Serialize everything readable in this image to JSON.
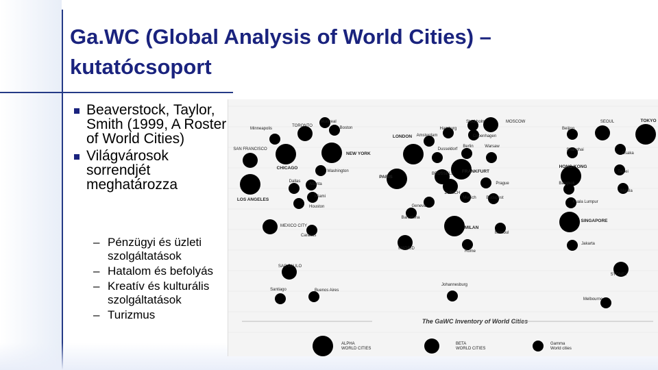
{
  "slide": {
    "title_line1": "Ga.WC (Global Analysis of World Cities) –",
    "title_line2": "kutatócsoport",
    "bullets": [
      "Beaverstock, Taylor, Smith (1999, A Roster of World Cities)",
      "Világvárosok sorrendjét meghatározza"
    ],
    "sub_bullets": [
      "Pénzügyi és üzleti szolgáltatások",
      "Hatalom és befolyás",
      "Kreatív és kulturális szolgáltatások",
      "Turizmus"
    ]
  },
  "map": {
    "caption": "The GaWC Inventory of World Cities",
    "legend": [
      {
        "label": "ALPHA WORLD CITIES",
        "tier": "alpha"
      },
      {
        "label": "BETA WORLD CITIES",
        "tier": "beta"
      },
      {
        "label": "Gamma World cities",
        "tier": "gamma"
      }
    ],
    "cities": [
      {
        "name": "Montreal",
        "tier": "gamma"
      },
      {
        "name": "Boston",
        "tier": "gamma"
      },
      {
        "name": "TORONTO",
        "tier": "beta"
      },
      {
        "name": "Minneapolis",
        "tier": "gamma"
      },
      {
        "name": "SAN FRANCISCO",
        "tier": "beta"
      },
      {
        "name": "NEW YORK",
        "tier": "alpha"
      },
      {
        "name": "CHICAGO",
        "tier": "alpha"
      },
      {
        "name": "Washington",
        "tier": "gamma"
      },
      {
        "name": "Dallas",
        "tier": "gamma"
      },
      {
        "name": "Atlanta",
        "tier": "gamma"
      },
      {
        "name": "LOS ANGELES",
        "tier": "alpha"
      },
      {
        "name": "Miami",
        "tier": "gamma"
      },
      {
        "name": "Houston",
        "tier": "gamma"
      },
      {
        "name": "MEXICO CITY",
        "tier": "beta"
      },
      {
        "name": "Caracas",
        "tier": "gamma"
      },
      {
        "name": "SAO PAULO",
        "tier": "beta"
      },
      {
        "name": "Santiago",
        "tier": "gamma"
      },
      {
        "name": "Buenos Aires",
        "tier": "gamma"
      },
      {
        "name": "Stockholm",
        "tier": "gamma"
      },
      {
        "name": "MOSCOW",
        "tier": "beta"
      },
      {
        "name": "Hamburg",
        "tier": "gamma"
      },
      {
        "name": "Copenhagen",
        "tier": "gamma"
      },
      {
        "name": "LONDON",
        "tier": "alpha"
      },
      {
        "name": "Amsterdam",
        "tier": "gamma"
      },
      {
        "name": "Dusseldorf",
        "tier": "gamma"
      },
      {
        "name": "Berlin",
        "tier": "gamma"
      },
      {
        "name": "Warsaw",
        "tier": "gamma"
      },
      {
        "name": "FRANKFURT",
        "tier": "alpha"
      },
      {
        "name": "PARIS",
        "tier": "alpha"
      },
      {
        "name": "BRUSSELS",
        "tier": "beta"
      },
      {
        "name": "Prague",
        "tier": "gamma"
      },
      {
        "name": "ZURICH",
        "tier": "beta"
      },
      {
        "name": "Munich",
        "tier": "gamma"
      },
      {
        "name": "Budapest",
        "tier": "gamma"
      },
      {
        "name": "Geneva",
        "tier": "gamma"
      },
      {
        "name": "Barcelona",
        "tier": "gamma"
      },
      {
        "name": "MILAN",
        "tier": "alpha"
      },
      {
        "name": "Istanbul",
        "tier": "gamma"
      },
      {
        "name": "MADRID",
        "tier": "beta"
      },
      {
        "name": "Rome",
        "tier": "gamma"
      },
      {
        "name": "Johannesburg",
        "tier": "gamma"
      },
      {
        "name": "Beijing",
        "tier": "gamma"
      },
      {
        "name": "SEOUL",
        "tier": "beta"
      },
      {
        "name": "TOKYO",
        "tier": "alpha"
      },
      {
        "name": "Shanghai",
        "tier": "gamma"
      },
      {
        "name": "Osaka",
        "tier": "gamma"
      },
      {
        "name": "HONG KONG",
        "tier": "alpha"
      },
      {
        "name": "Taipei",
        "tier": "gamma"
      },
      {
        "name": "Bangkok",
        "tier": "gamma"
      },
      {
        "name": "Manila",
        "tier": "gamma"
      },
      {
        "name": "Kuala Lumpur",
        "tier": "gamma"
      },
      {
        "name": "SINGAPORE",
        "tier": "alpha"
      },
      {
        "name": "Jakarta",
        "tier": "gamma"
      },
      {
        "name": "SYDNEY",
        "tier": "beta"
      },
      {
        "name": "Melbourne",
        "tier": "gamma"
      }
    ]
  }
}
